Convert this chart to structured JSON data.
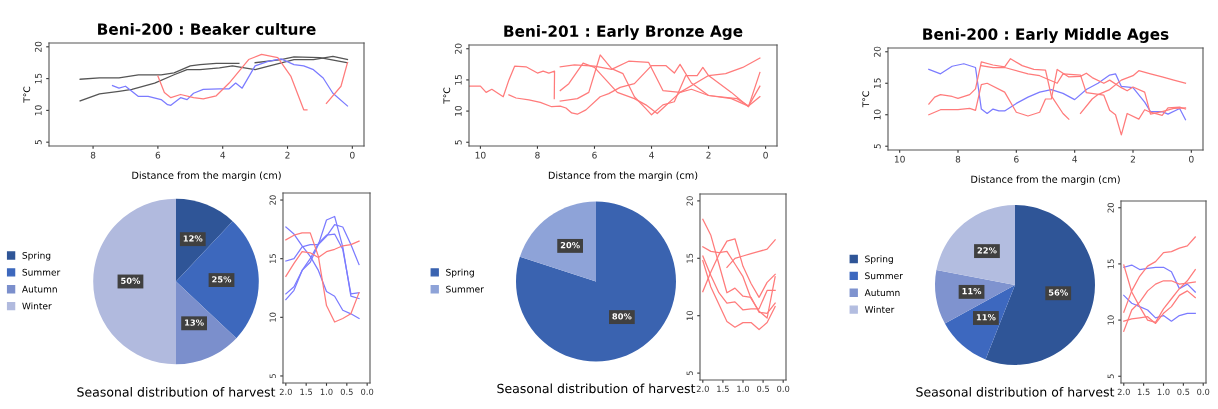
{
  "chart_data": [
    {
      "type": "line",
      "title": "Beni-200 : Beaker culture",
      "xlabel": "Distance from the margin (cm)",
      "ylabel": "T°C",
      "xlim": [
        9.36,
        -0.36
      ],
      "ylim": [
        4.4,
        20.6
      ],
      "xticks": [
        8,
        6,
        4,
        2,
        0
      ],
      "yticks": [
        5,
        10,
        15,
        20
      ],
      "grid": false,
      "series": [
        {
          "color": "#555555",
          "x": [
            8.4,
            7.8,
            7.2,
            6.6,
            5.9,
            5.5,
            5.0,
            4.7,
            4.2,
            3.5,
            3.25,
            3.0,
            2.2,
            1.8,
            1.0,
            0.15
          ],
          "values": [
            14.9,
            15.1,
            15.1,
            15.6,
            15.6,
            15.9,
            17.0,
            17.2,
            17.4,
            17.4,
            null,
            17.5,
            18.0,
            18.4,
            18.3,
            17.5
          ]
        },
        {
          "color": "#555555",
          "x": [
            8.4,
            7.8,
            7.2,
            6.8,
            6.1,
            5.5,
            5.1,
            4.7,
            4.1,
            3.7,
            3.0,
            2.4,
            1.8,
            1.2,
            0.6,
            0.15
          ],
          "values": [
            11.5,
            12.6,
            13.0,
            13.3,
            14.3,
            15.6,
            16.4,
            16.4,
            16.7,
            17.0,
            16.4,
            17.2,
            18.0,
            18.0,
            18.5,
            18.0
          ]
        },
        {
          "color": "#7b7bff",
          "x": [
            7.4,
            7.2,
            7.0,
            6.6,
            6.3,
            5.9,
            5.7,
            5.6,
            5.3,
            5.1,
            4.9,
            4.6,
            4.1,
            3.8,
            3.6,
            3.4,
            3.0,
            2.6,
            2.2,
            1.8,
            1.5,
            1.2,
            0.9,
            0.6,
            0.15
          ],
          "values": [
            13.9,
            13.5,
            13.8,
            12.2,
            12.2,
            11.7,
            10.9,
            10.8,
            12.0,
            11.7,
            12.7,
            13.3,
            13.4,
            13.4,
            14.3,
            13.5,
            17.0,
            17.7,
            18.1,
            17.2,
            17.0,
            16.4,
            15.1,
            12.7,
            10.7
          ]
        },
        {
          "color": "#ff7b7b",
          "x": [
            6.0,
            5.8,
            5.6,
            5.3,
            4.9,
            4.6,
            4.2,
            3.8,
            3.2,
            2.8,
            2.3,
            1.9,
            1.5,
            1.4,
            1.1,
            0.8,
            0.35,
            0.15
          ],
          "values": [
            15.4,
            12.8,
            12.0,
            12.5,
            12.0,
            11.8,
            12.3,
            14.3,
            18.0,
            18.8,
            18.3,
            15.4,
            10.1,
            10.1,
            null,
            11.1,
            13.8,
            17.5
          ]
        }
      ]
    },
    {
      "type": "line",
      "title": "Beni-201 : Early Bronze Age",
      "xlabel": "Distance from the margin (cm)",
      "ylabel": "T°C",
      "xlim": [
        10.4,
        -0.4
      ],
      "ylim": [
        4.4,
        20.6
      ],
      "xticks": [
        10,
        8,
        6,
        4,
        2,
        0
      ],
      "yticks": [
        5,
        10,
        15,
        20
      ],
      "grid": false,
      "series": [
        {
          "color": "#ff7b7b",
          "x": [
            10.4,
            10.0,
            9.8,
            9.6,
            9.2,
            9.0,
            8.8,
            8.4,
            8.0,
            7.8,
            7.6,
            7.4,
            7.41
          ],
          "values": [
            14.0,
            14.0,
            13.0,
            13.5,
            12.3,
            15.0,
            17.2,
            17.1,
            16.1,
            16.4,
            16.1,
            16.4,
            12.0
          ]
        },
        {
          "color": "#ff7b7b",
          "x": [
            9.0,
            8.75,
            8.3,
            7.9,
            7.5,
            7.2,
            7.0,
            6.8,
            6.6,
            6.3,
            5.8,
            5.5,
            5.1,
            4.6,
            4.0,
            3.5,
            3.2,
            3.0,
            2.6,
            2.0,
            1.0,
            0.6,
            0.2
          ],
          "values": [
            12.6,
            12.1,
            11.8,
            11.4,
            10.7,
            10.8,
            10.5,
            9.7,
            9.5,
            10.2,
            12.3,
            12.8,
            13.8,
            14.4,
            17.3,
            17.3,
            16.1,
            17.5,
            14.5,
            12.5,
            12.0,
            10.8,
            12.3
          ]
        },
        {
          "color": "#ff7b7b",
          "x": [
            7.2,
            6.9,
            6.4,
            6.0,
            5.6,
            5.2,
            4.6,
            4.2,
            3.8,
            3.0,
            2.0,
            1.4,
            0.8,
            0.2
          ],
          "values": [
            13.3,
            14.4,
            17.7,
            17.0,
            15.0,
            13.0,
            12.0,
            11.0,
            9.6,
            13.0,
            15.7,
            16.0,
            17.0,
            18.5
          ]
        },
        {
          "color": "#ff7b7b",
          "x": [
            7.2,
            6.7,
            6.0,
            5.4,
            4.8,
            4.1,
            3.6,
            3.0,
            2.6,
            2.0,
            1.2,
            0.6,
            0.2
          ],
          "values": [
            17.1,
            17.4,
            17.2,
            16.7,
            18.0,
            17.8,
            13.3,
            13.0,
            13.5,
            12.5,
            12.0,
            10.8,
            14.0
          ]
        },
        {
          "color": "#ff7b7b",
          "x": [
            7.2,
            6.6,
            6.2,
            5.8,
            5.4,
            5.0,
            4.6,
            4.2,
            4.0,
            3.6,
            3.2,
            2.8,
            2.4,
            2.2,
            2.0,
            1.2,
            0.6,
            0.2
          ],
          "values": [
            11.6,
            12.0,
            13.0,
            19.0,
            16.8,
            16.0,
            12.3,
            10.4,
            9.4,
            11.0,
            11.5,
            15.7,
            15.7,
            17.0,
            15.7,
            13.0,
            10.7,
            16.2
          ]
        }
      ]
    },
    {
      "type": "line",
      "title": "Beni-200 : Early Middle Ages",
      "xlabel": "Distance from the margin (cm)",
      "ylabel": "T°C",
      "xlim": [
        10.4,
        -0.4
      ],
      "ylim": [
        4.4,
        20.6
      ],
      "xticks": [
        10,
        8,
        6,
        4,
        2,
        0
      ],
      "yticks": [
        5,
        10,
        15,
        20
      ],
      "grid": false,
      "series": [
        {
          "color": "#7b7bff",
          "x": [
            9.0,
            8.6,
            8.2,
            7.8,
            7.4,
            7.2,
            7.0,
            6.8,
            6.6,
            6.4,
            6.0,
            5.6,
            5.2,
            4.8,
            4.4,
            4.0,
            3.6,
            3.2,
            2.8,
            2.6,
            2.4,
            2.0,
            1.6,
            1.4,
            1.0,
            0.8,
            0.4,
            0.2
          ],
          "values": [
            17.2,
            16.5,
            17.7,
            18.1,
            17.5,
            10.9,
            10.2,
            10.9,
            10.6,
            10.6,
            11.8,
            12.8,
            13.6,
            14.0,
            13.4,
            12.4,
            14.0,
            15.0,
            16.3,
            16.5,
            14.5,
            14.3,
            12.0,
            10.5,
            10.5,
            10.1,
            11.0,
            9.2
          ]
        },
        {
          "color": "#ff7b7b",
          "x": [
            9.0,
            8.8,
            8.6,
            8.2,
            8.0,
            7.6,
            7.4,
            7.2,
            6.8,
            6.4,
            6.2,
            5.8,
            5.4,
            5.0,
            4.8,
            4.4,
            4.2
          ],
          "values": [
            11.7,
            12.8,
            13.2,
            12.9,
            12.6,
            13.2,
            14.1,
            18.4,
            17.9,
            17.6,
            18.9,
            17.8,
            17.2,
            17.1,
            13.0,
            10.2,
            9.3
          ]
        },
        {
          "color": "#ff7b7b",
          "x": [
            9.0,
            8.6,
            8.0,
            7.6,
            7.4,
            7.2,
            7.0,
            6.4,
            6.0,
            5.6,
            5.2,
            5.0,
            4.8,
            4.6,
            4.2,
            3.8,
            3.6,
            3.4,
            3.0,
            2.8,
            2.4,
            2.2,
            2.0,
            1.6,
            1.4,
            1.0,
            0.6,
            0.2
          ],
          "values": [
            10.0,
            10.8,
            10.8,
            11.0,
            10.7,
            14.8,
            15.0,
            13.6,
            10.4,
            9.8,
            10.4,
            12.5,
            12.5,
            17.2,
            16.0,
            16.1,
            16.6,
            15.9,
            15.0,
            15.5,
            14.3,
            13.8,
            14.4,
            13.6,
            10.1,
            10.5,
            11.0,
            11.1
          ]
        },
        {
          "color": "#ff7b7b",
          "x": [
            7.2,
            6.8,
            6.4,
            5.6,
            5.2,
            4.6,
            4.4,
            3.8,
            3.6,
            3.0,
            2.8,
            2.6,
            2.4,
            2.2,
            1.8,
            1.6,
            1.4,
            1.0,
            0.8,
            0.4,
            0.2
          ],
          "values": [
            17.8,
            17.5,
            17.5,
            16.5,
            16.2,
            15.0,
            16.5,
            16.3,
            13.5,
            13.1,
            10.7,
            10.0,
            6.8,
            10.2,
            9.3,
            10.8,
            10.4,
            9.9,
            11.1,
            11.2,
            10.9
          ]
        },
        {
          "color": "#ff7b7b",
          "x": [
            3.8,
            3.4,
            3.2,
            2.8,
            2.4,
            2.0,
            1.8,
            1.4,
            1.0,
            0.6,
            0.2
          ],
          "values": [
            10.2,
            12.5,
            13.2,
            14.0,
            15.5,
            16.2,
            17.0,
            16.5,
            16.0,
            15.5,
            15.0
          ]
        }
      ]
    },
    {
      "type": "pie",
      "categories": [
        "Spring",
        "Summer",
        "Autumn",
        "Winter"
      ],
      "values": [
        12,
        25,
        13,
        50
      ],
      "value_labels": [
        "12%",
        "25%",
        "13%",
        "50%"
      ],
      "colors": [
        "#2f5597",
        "#3d68bd",
        "#7b8fcc",
        "#b1bade"
      ],
      "legend": "left",
      "annotations": [
        "Seasonal distribution of harvest"
      ]
    },
    {
      "type": "line",
      "x": [
        2.0,
        1.8,
        1.6,
        1.4,
        1.2,
        1.0,
        0.8,
        0.6,
        0.4,
        0.2
      ],
      "xlim": [
        2.07,
        -0.07
      ],
      "ylim": [
        4.4,
        20.6
      ],
      "xticks": [
        {
          "value": 2,
          "label": "2.0"
        },
        {
          "value": 1.5,
          "label": "1.5"
        },
        {
          "value": 1,
          "label": "1.0"
        },
        {
          "value": 0.5,
          "label": "0.5"
        },
        {
          "value": 0,
          "label": "0.0"
        }
      ],
      "yticks": [
        5,
        10,
        15,
        20
      ],
      "grid": false,
      "series": [
        {
          "color": "#7b7bff",
          "values": [
            17.7,
            17.1,
            16.1,
            15.2,
            14.0,
            12.2,
            11.8,
            10.6,
            10.3,
            9.9
          ]
        },
        {
          "color": "#7b7bff",
          "values": [
            11.5,
            12.3,
            14.0,
            14.7,
            16.2,
            18.3,
            18.6,
            16.0,
            11.8,
            11.6
          ]
        },
        {
          "color": "#7b7bff",
          "values": [
            12.0,
            12.6,
            14.0,
            15.0,
            16.3,
            17.0,
            17.1,
            15.8,
            12.0,
            12.1
          ]
        },
        {
          "color": "#7b7bff",
          "values": [
            14.8,
            15.0,
            16.0,
            16.2,
            16.2,
            16.9,
            17.9,
            17.7,
            16.2,
            14.5
          ]
        },
        {
          "color": "#ff7b7b",
          "values": [
            16.6,
            17.0,
            17.2,
            17.2,
            15.2,
            11.0,
            9.6,
            9.9,
            10.3,
            12.1
          ]
        },
        {
          "color": "#ff7b7b",
          "values": [
            13.5,
            14.6,
            15.6,
            15.5,
            15.1,
            15.6,
            15.8,
            16.1,
            16.2,
            16.5
          ]
        }
      ]
    },
    {
      "type": "pie",
      "categories": [
        "Spring",
        "Summer"
      ],
      "values": [
        80,
        20
      ],
      "value_labels": [
        "80%",
        "20%"
      ],
      "colors": [
        "#3a63b0",
        "#8ea3d8"
      ],
      "legend": "left",
      "annotations": [
        "Seasonal distribution of harvest"
      ]
    },
    {
      "type": "line",
      "x": [
        2.0,
        1.8,
        1.6,
        1.4,
        1.2,
        1.0,
        0.8,
        0.6,
        0.4,
        0.2
      ],
      "xlim": [
        2.07,
        -0.07
      ],
      "ylim": [
        4.4,
        20.6
      ],
      "xticks": [
        {
          "value": 2,
          "label": "2.0"
        },
        {
          "value": 1.5,
          "label": "1.5"
        },
        {
          "value": 1,
          "label": "1.0"
        },
        {
          "value": 0.5,
          "label": "0.5"
        },
        {
          "value": 0,
          "label": "0.0"
        }
      ],
      "yticks": [
        5,
        10,
        15,
        20
      ],
      "grid": false,
      "series": [
        {
          "color": "#ff7b7b",
          "values": [
            18.4,
            17.0,
            14.5,
            12.0,
            12.4,
            11.7,
            11.6,
            10.3,
            10.2,
            11.1
          ]
        },
        {
          "color": "#ff7b7b",
          "values": [
            16.0,
            15.6,
            15.5,
            15.6,
            14.5,
            13.4,
            11.5,
            10.4,
            9.8,
            13.4
          ]
        },
        {
          "color": "#ff7b7b",
          "values": [
            12.1,
            13.8,
            15.3,
            16.5,
            16.7,
            14.3,
            12.8,
            11.6,
            12.9,
            13.6
          ]
        },
        {
          "color": "#ff7b7b",
          "values": [
            15.2,
            13.5,
            12.0,
            11.1,
            11.2,
            10.5,
            10.6,
            10.6,
            12.2,
            12.2
          ]
        },
        {
          "color": "#ff7b7b",
          "values": [
            14.8,
            12.5,
            11.0,
            9.5,
            9.0,
            9.4,
            9.4,
            8.8,
            9.4,
            10.8
          ]
        },
        {
          "color": "#ff7b7b",
          "values": [
            null,
            null,
            null,
            14.2,
            15.0,
            15.2,
            15.4,
            15.6,
            15.8,
            16.6
          ]
        }
      ]
    },
    {
      "type": "pie",
      "categories": [
        "Spring",
        "Summer",
        "Autumn",
        "Winter"
      ],
      "values": [
        56,
        11,
        11,
        22
      ],
      "value_labels": [
        "56%",
        "11%",
        "11%",
        "22%"
      ],
      "colors": [
        "#2f5597",
        "#3d68bf",
        "#7f93cf",
        "#b3bde0"
      ],
      "legend": "left",
      "annotations": [
        "Seasonal distribution of harvest"
      ]
    },
    {
      "type": "line",
      "x": [
        2.0,
        1.8,
        1.6,
        1.4,
        1.2,
        1.0,
        0.8,
        0.6,
        0.4,
        0.2
      ],
      "xlim": [
        2.07,
        -0.07
      ],
      "ylim": [
        4.4,
        20.6
      ],
      "xticks": [
        {
          "value": 2,
          "label": "2.0"
        },
        {
          "value": 1.5,
          "label": "1.5"
        },
        {
          "value": 1,
          "label": "1.0"
        },
        {
          "value": 0.5,
          "label": "0.5"
        },
        {
          "value": 0,
          "label": "0.0"
        }
      ],
      "yticks": [
        5,
        10,
        15,
        20
      ],
      "grid": false,
      "series": [
        {
          "color": "#7b7bff",
          "values": [
            14.7,
            14.9,
            14.5,
            14.6,
            14.7,
            14.7,
            14.3,
            12.8,
            13.2,
            12.5
          ]
        },
        {
          "color": "#7b7bff",
          "values": [
            12.2,
            11.5,
            11.2,
            10.9,
            10.2,
            10.4,
            9.9,
            10.4,
            10.6,
            10.6
          ]
        },
        {
          "color": "#ff7b7b",
          "values": [
            10.7,
            12.6,
            13.9,
            14.8,
            15.2,
            16.0,
            16.1,
            16.4,
            16.6,
            17.4
          ]
        },
        {
          "color": "#ff7b7b",
          "values": [
            9.0,
            10.9,
            11.6,
            12.6,
            13.2,
            13.5,
            13.5,
            13.2,
            13.3,
            13.4
          ]
        },
        {
          "color": "#ff7b7b",
          "values": [
            14.9,
            12.5,
            11.2,
            10.0,
            9.8,
            11.0,
            11.9,
            12.8,
            13.5,
            14.5
          ]
        },
        {
          "color": "#ff7b7b",
          "values": [
            9.9,
            10.1,
            10.2,
            10.3,
            9.7,
            10.6,
            11.2,
            12.2,
            12.6,
            12.0
          ]
        }
      ]
    }
  ]
}
